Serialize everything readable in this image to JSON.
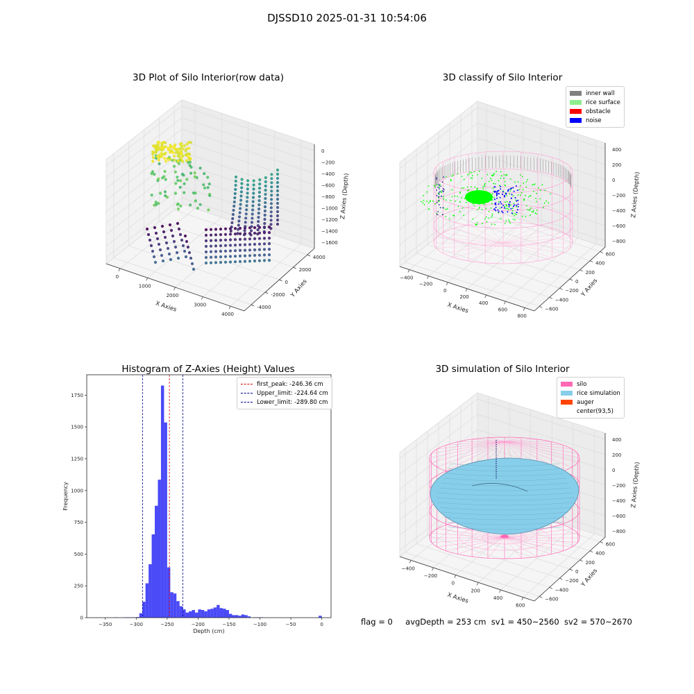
{
  "figure": {
    "title": "DJSSD10 2025-01-31 10:54:06",
    "footer": {
      "flag": "flag = 0",
      "avg_depth": "avgDepth = 253 cm",
      "sv1": "sv1 = 450~2560",
      "sv2": "sv2 = 570~2670"
    }
  },
  "colors": {
    "histogram": "#4a4af7",
    "first_peak_line": "#e00000",
    "limit_lines": "#00008b",
    "inner_wall": "#808080",
    "rice_surface": "#90ee90",
    "obstacle": "#ff0000",
    "noise": "#0000ff",
    "silo": "#ff69b4",
    "rice_simulation": "#87ceeb",
    "auger": "#ff4500",
    "classify_points": "#00ff00"
  },
  "chart_data": [
    {
      "type": "scatter",
      "projection": "3d",
      "title": "3D Plot of Silo Interior(row data)",
      "xlabel": "X Axies",
      "ylabel": "Y Axies",
      "zlabel": "Z Axies (Depth)",
      "x_ticks": [
        "0",
        "1000",
        "2000",
        "3000",
        "4000"
      ],
      "y_ticks": [
        "-4000",
        "-2000",
        "0",
        "2000",
        "4000"
      ],
      "z_ticks": [
        "0",
        "−200",
        "−400",
        "−600",
        "−800",
        "−1000",
        "−1200",
        "−1400",
        "−1600"
      ],
      "xlim": [
        -500,
        4600
      ],
      "ylim": [
        -4500,
        4500
      ],
      "zlim": [
        -1750,
        50
      ],
      "colormap": "viridis"
    },
    {
      "type": "scatter",
      "projection": "3d",
      "title": "3D classify of Silo Interior",
      "xlabel": "X Axies",
      "ylabel": "Y Axies",
      "zlabel": "Z Axies (Depth)",
      "x_ticks": [
        "−400",
        "−200",
        "0",
        "200",
        "400",
        "600",
        "800"
      ],
      "y_ticks": [
        "−600",
        "−400",
        "−200",
        "0",
        "200",
        "400",
        "600"
      ],
      "z_ticks": [
        "400",
        "200",
        "0",
        "−200",
        "−400",
        "−600",
        "−800"
      ],
      "legend": [
        "inner wall",
        "rice surface",
        "obstacle",
        "noise"
      ],
      "legend_position": "top-right"
    },
    {
      "type": "bar",
      "title": "Histogram of Z-Axies (Height) Values",
      "xlabel": "Depth (cm)",
      "ylabel": "Frequency",
      "x_ticks": [
        "−350",
        "−300",
        "−250",
        "−200",
        "−150",
        "−100",
        "−50",
        "0"
      ],
      "x_tick_values": [
        -350,
        -300,
        -250,
        -200,
        -150,
        -100,
        -50,
        0
      ],
      "y_ticks": [
        "0",
        "250",
        "500",
        "750",
        "1000",
        "1250",
        "1500",
        "1750"
      ],
      "y_tick_values": [
        0,
        250,
        500,
        750,
        1000,
        1250,
        1500,
        1750
      ],
      "xlim": [
        -380,
        15
      ],
      "ylim": [
        0,
        1910
      ],
      "bin_width": 5,
      "bins": [
        {
          "start": -335,
          "count": 3
        },
        {
          "start": -320,
          "count": 3
        },
        {
          "start": -315,
          "count": 3
        },
        {
          "start": -310,
          "count": 3
        },
        {
          "start": -305,
          "count": 3
        },
        {
          "start": -300,
          "count": 5
        },
        {
          "start": -295,
          "count": 35
        },
        {
          "start": -290,
          "count": 125
        },
        {
          "start": -285,
          "count": 270
        },
        {
          "start": -280,
          "count": 420
        },
        {
          "start": -275,
          "count": 655
        },
        {
          "start": -270,
          "count": 880
        },
        {
          "start": -265,
          "count": 1085
        },
        {
          "start": -260,
          "count": 1825
        },
        {
          "start": -255,
          "count": 1535
        },
        {
          "start": -250,
          "count": 395
        },
        {
          "start": -245,
          "count": 200
        },
        {
          "start": -240,
          "count": 190
        },
        {
          "start": -235,
          "count": 130
        },
        {
          "start": -230,
          "count": 90
        },
        {
          "start": -225,
          "count": 65
        },
        {
          "start": -220,
          "count": 40
        },
        {
          "start": -215,
          "count": 50
        },
        {
          "start": -210,
          "count": 60
        },
        {
          "start": -205,
          "count": 40
        },
        {
          "start": -200,
          "count": 65
        },
        {
          "start": -195,
          "count": 60
        },
        {
          "start": -190,
          "count": 50
        },
        {
          "start": -185,
          "count": 65
        },
        {
          "start": -180,
          "count": 70
        },
        {
          "start": -175,
          "count": 80
        },
        {
          "start": -170,
          "count": 100
        },
        {
          "start": -165,
          "count": 75
        },
        {
          "start": -160,
          "count": 70
        },
        {
          "start": -155,
          "count": 60
        },
        {
          "start": -150,
          "count": 30
        },
        {
          "start": -145,
          "count": 20
        },
        {
          "start": -140,
          "count": 20
        },
        {
          "start": -135,
          "count": 15
        },
        {
          "start": -130,
          "count": 25
        },
        {
          "start": -125,
          "count": 20
        },
        {
          "start": -120,
          "count": 10
        },
        {
          "start": -110,
          "count": 3
        },
        {
          "start": -105,
          "count": 3
        },
        {
          "start": -100,
          "count": 3
        },
        {
          "start": -5,
          "count": 15
        }
      ],
      "vlines": [
        {
          "label": "first_peak: -246.36 cm",
          "x": -246.36,
          "color": "#e00000"
        },
        {
          "label": "Upper_limit: -224.64 cm",
          "x": -224.64,
          "color": "#00008b"
        },
        {
          "label": "Lower_limit: -289.80 cm",
          "x": -289.8,
          "color": "#00008b"
        }
      ],
      "legend_position": "top-right"
    },
    {
      "type": "surface",
      "projection": "3d",
      "title": "3D simulation of Silo Interior",
      "xlabel": "X Axies",
      "ylabel": "Y Axies",
      "zlabel": "Z Axies (Depth)",
      "x_ticks": [
        "−400",
        "−200",
        "0",
        "200",
        "400",
        "600"
      ],
      "y_ticks": [
        "−600",
        "−400",
        "−200",
        "0",
        "200",
        "400",
        "600"
      ],
      "z_ticks": [
        "400",
        "200",
        "0",
        "−200",
        "−400",
        "−600",
        "−800"
      ],
      "legend": [
        "silo",
        "rice simulation",
        "auger",
        "center(93,5)"
      ],
      "legend_position": "top-right"
    }
  ]
}
